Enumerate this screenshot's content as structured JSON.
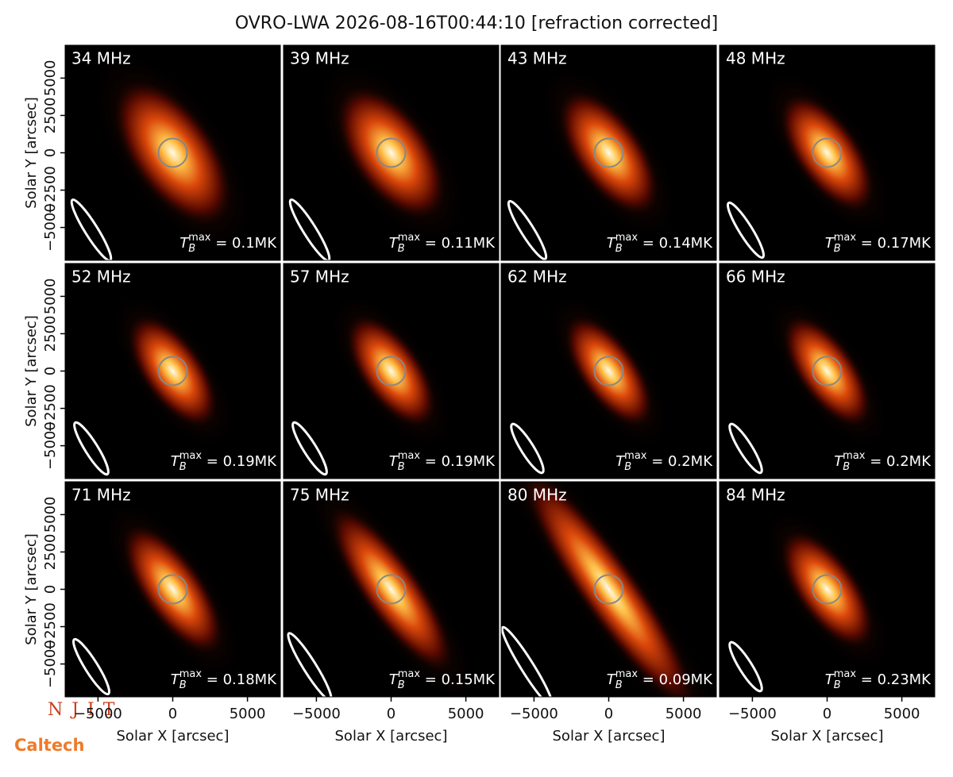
{
  "chart_data": {
    "type": "image-grid",
    "title": "OVRO-LWA 2026-08-16T00:44:10 [refraction corrected]",
    "x_label": "Solar X [arcsec]",
    "y_label": "Solar Y [arcsec]",
    "xlim": [
      -7200,
      7200
    ],
    "ylim": [
      -7200,
      7200
    ],
    "xticks": [
      {
        "value": -5000,
        "label": "−5000"
      },
      0,
      5000
    ],
    "yticks": [
      {
        "value": -5000,
        "label": "−5000"
      },
      {
        "value": -2500,
        "label": "−2500"
      },
      0,
      2500,
      5000
    ],
    "tb_symbol": {
      "base": "T",
      "sub": "B",
      "sup": "max",
      "eq": " = "
    },
    "panels": [
      {
        "frequency": "34 MHz",
        "tb_max": "0.1MK"
      },
      {
        "frequency": "39 MHz",
        "tb_max": "0.11MK"
      },
      {
        "frequency": "43 MHz",
        "tb_max": "0.14MK"
      },
      {
        "frequency": "48 MHz",
        "tb_max": "0.17MK"
      },
      {
        "frequency": "52 MHz",
        "tb_max": "0.19MK"
      },
      {
        "frequency": "57 MHz",
        "tb_max": "0.19MK"
      },
      {
        "frequency": "62 MHz",
        "tb_max": "0.2MK"
      },
      {
        "frequency": "66 MHz",
        "tb_max": "0.2MK"
      },
      {
        "frequency": "71 MHz",
        "tb_max": "0.18MK"
      },
      {
        "frequency": "75 MHz",
        "tb_max": "0.15MK"
      },
      {
        "frequency": "80 MHz",
        "tb_max": "0.09MK"
      },
      {
        "frequency": "84 MHz",
        "tb_max": "0.23MK"
      }
    ],
    "logos": [
      "N J I T",
      "Caltech"
    ]
  }
}
